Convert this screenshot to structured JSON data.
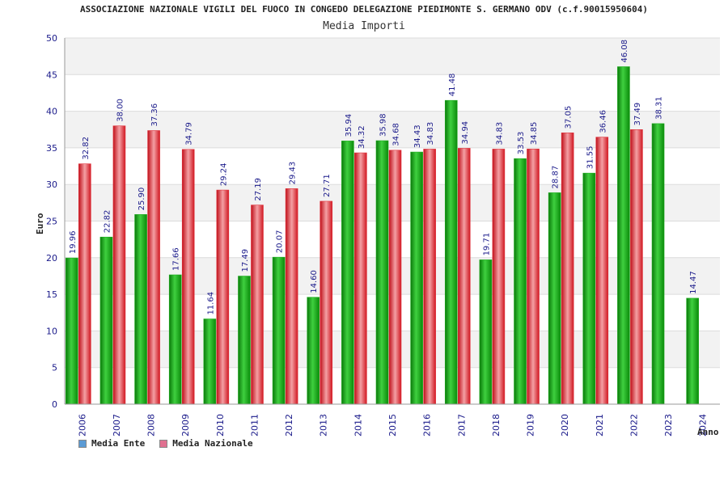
{
  "header": {
    "title": "ASSOCIAZIONE NAZIONALE VIGILI DEL FUOCO IN CONGEDO DELEGAZIONE PIEDIMONTE S. GERMANO ODV (c.f.90015950604)"
  },
  "chart_data": {
    "type": "bar",
    "title": "Media Importi",
    "xlabel": "Anno",
    "ylabel": "Euro",
    "ylim": [
      0,
      50
    ],
    "yticks": [
      0,
      5,
      10,
      15,
      20,
      25,
      30,
      35,
      40,
      45,
      50
    ],
    "grid": true,
    "legend_position": "bottom-left",
    "categories": [
      "2006",
      "2007",
      "2008",
      "2009",
      "2010",
      "2011",
      "2012",
      "2013",
      "2014",
      "2015",
      "2016",
      "2017",
      "2018",
      "2019",
      "2020",
      "2021",
      "2022",
      "2023",
      "2024"
    ],
    "series": [
      {
        "name": "Media Ente",
        "legend_color": "#5b9bd5",
        "bar_color": "#1fae1f",
        "values": [
          19.96,
          22.82,
          25.9,
          17.66,
          11.64,
          17.49,
          20.07,
          14.6,
          35.94,
          35.98,
          34.43,
          41.48,
          19.71,
          33.53,
          28.87,
          31.55,
          46.08,
          38.31,
          14.47
        ]
      },
      {
        "name": "Media Nazionale",
        "legend_color": "#e07090",
        "bar_color": "#e0303a",
        "values": [
          32.82,
          38.0,
          37.36,
          34.79,
          29.24,
          27.19,
          29.43,
          27.71,
          34.32,
          34.68,
          34.83,
          34.94,
          34.83,
          34.85,
          37.05,
          36.46,
          37.49,
          null,
          null
        ]
      }
    ]
  }
}
